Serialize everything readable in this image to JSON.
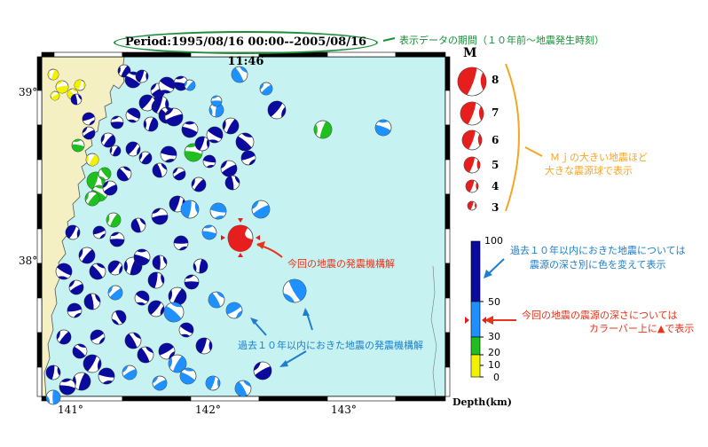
{
  "period": "Period:1995/08/16 00:00--2005/08/16 11:46",
  "annotations": {
    "period_note": "表示データの期間（１０年前～地震発生時刻）",
    "mj_note_line1": "Ｍｊの大きい地震ほど",
    "mj_note_line2": "大きな震源球で表示",
    "current_mech": "今回の地震の発震機構解",
    "depth_note_line1": "過去１０年以内におきた地震については",
    "depth_note_line2": "震源の深さ別に色を変えて表示",
    "current_depth_line1": "今回の地震の震源の深さについては",
    "current_depth_line2": "カラーバー上に▲で表示",
    "past_mech": "過去１０年以内におきた地震の発震機構解"
  },
  "axes": {
    "lat_labels": [
      "39°",
      "38°"
    ],
    "lon_labels": [
      "141°",
      "142°",
      "143°"
    ]
  },
  "magnitude_legend": {
    "title": "M",
    "values": [
      "8",
      "7",
      "6",
      "5",
      "4",
      "3"
    ]
  },
  "depth_scale": {
    "title": "Depth(km)",
    "ticks": [
      "100",
      "50",
      "30",
      "20",
      "10",
      "0"
    ],
    "current_depth_km": 40,
    "colors": {
      "deep": "#0a0a9e",
      "mid": "#1e90ff",
      "shallow_mid": "#1fbf1f",
      "shallow": "#f2f200"
    }
  },
  "colors": {
    "sea": "#c6f2f2",
    "land": "#f5f0c4",
    "current": "#e61e1e",
    "annotation_green": "#1a8f3a",
    "annotation_orange": "#f5a623",
    "annotation_red": "#e8331a",
    "annotation_blue": "#1e7ecb"
  }
}
